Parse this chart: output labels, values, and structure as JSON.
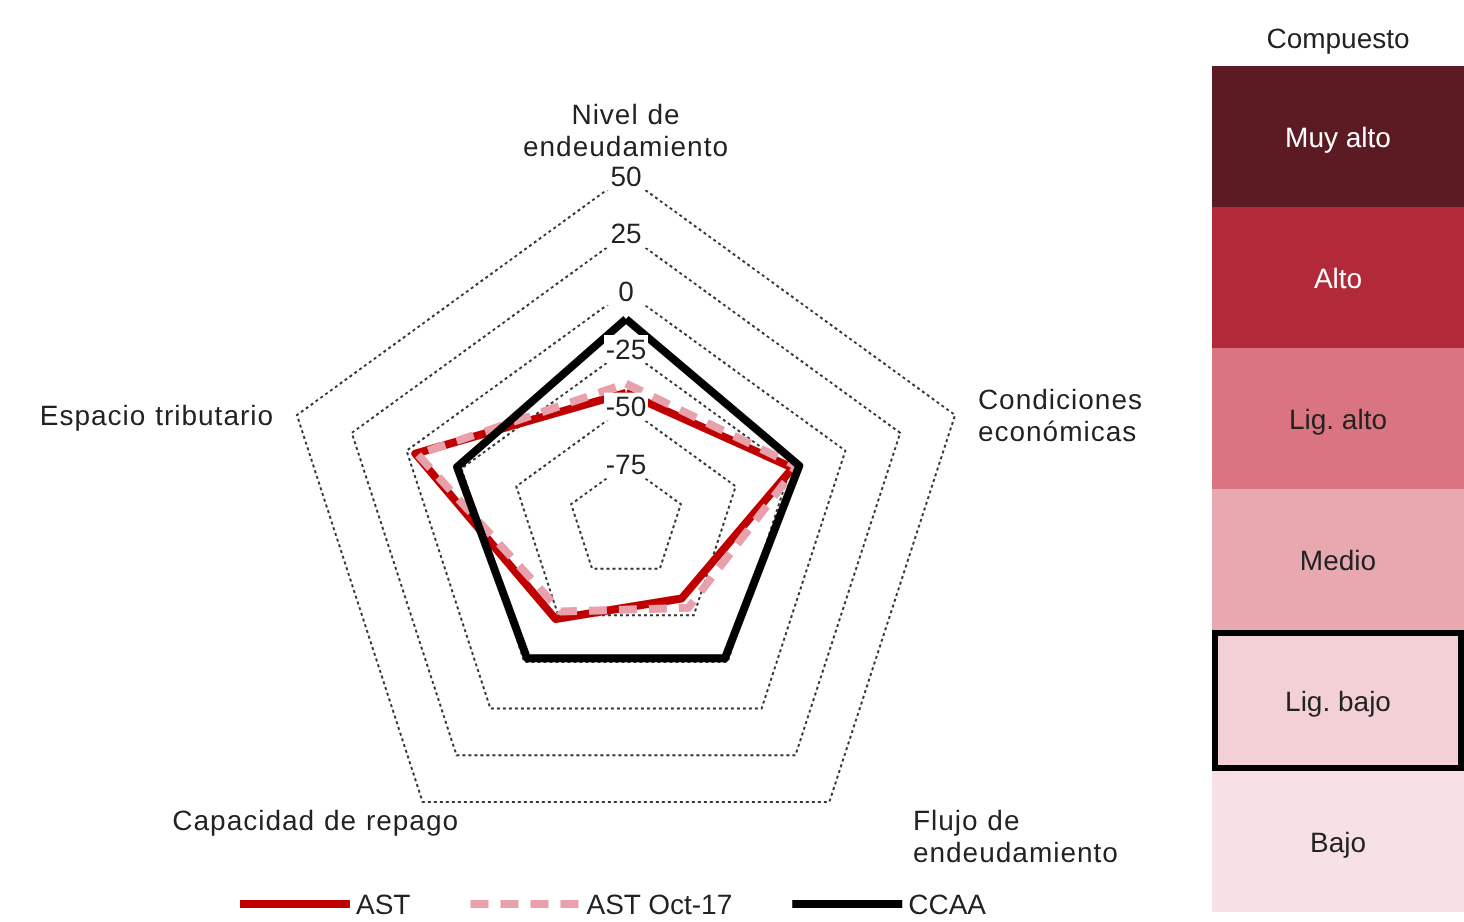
{
  "chart_data": [
    {
      "type": "radar",
      "categories": [
        "Nivel de endeudamiento",
        "Condiciones económicas",
        "Flujo de endeudamiento",
        "Capacidad de repago",
        "Espacio tributario"
      ],
      "ylim": [
        -100,
        50
      ],
      "yticks": [
        -75,
        -50,
        -25,
        0,
        25,
        50
      ],
      "legend": "bottom",
      "marker": "none",
      "series": [
        {
          "name": "AST",
          "color": "#c00000",
          "line_style": "solid",
          "values": [
            -44,
            -24,
            -59,
            -48,
            -4
          ]
        },
        {
          "name": "AST Oct-17",
          "color": "#e8a0aa",
          "line_style": "dashed",
          "values": [
            -40,
            -22,
            -54,
            -52,
            -5
          ]
        },
        {
          "name": "CCAA",
          "color": "#000000",
          "line_style": "solid",
          "values": [
            -12,
            -21,
            -27,
            -27,
            -23
          ]
        }
      ]
    },
    {
      "type": "other",
      "title": "Compuesto",
      "categories": [
        "Muy alto",
        "Alto",
        "Lig. alto",
        "Medio",
        "Lig. bajo",
        "Bajo"
      ],
      "colors": [
        "#5c1a22",
        "#b22a3a",
        "#d97480",
        "#e8a8b0",
        "#f3d0d6",
        "#f7e1e5"
      ]
    }
  ]
}
